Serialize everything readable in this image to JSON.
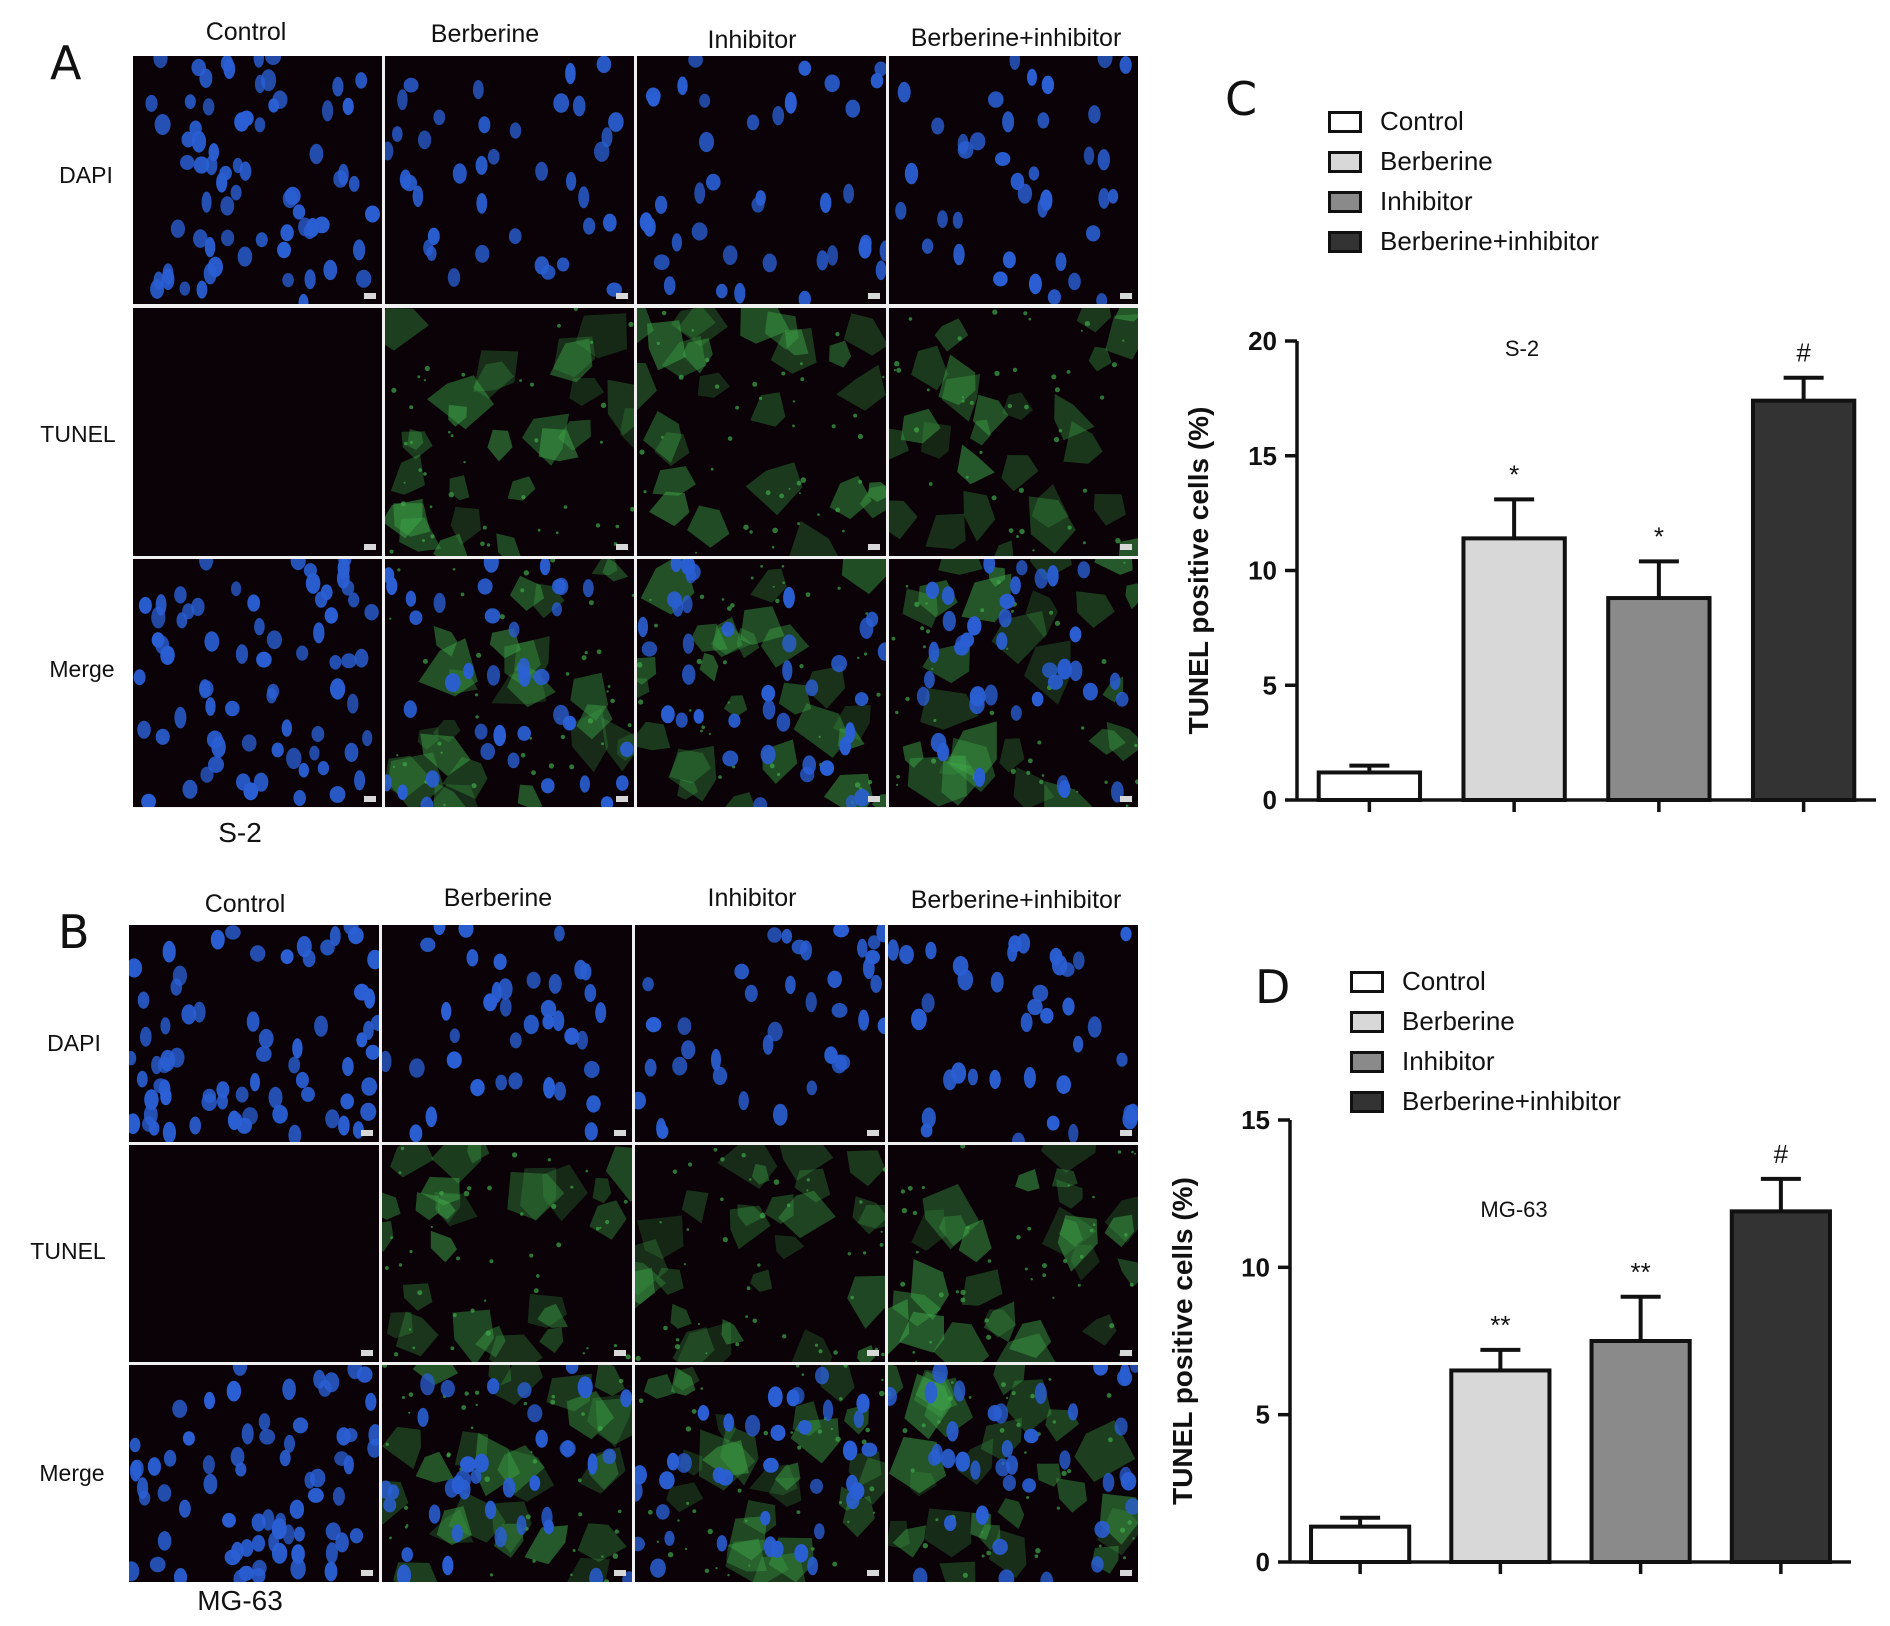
{
  "panels": {
    "a": {
      "letter": "A",
      "cell_line": "S-2",
      "columns": [
        "Control",
        "Berberine",
        "Inhibitor",
        "Berberine+inhibitor"
      ],
      "rows": [
        "DAPI",
        "TUNEL",
        "Merge"
      ]
    },
    "b": {
      "letter": "B",
      "cell_line": "MG-63",
      "columns": [
        "Control",
        "Berberine",
        "Inhibitor",
        "Berberine+inhibitor"
      ],
      "rows": [
        "DAPI",
        "TUNEL",
        "Merge"
      ]
    },
    "c": {
      "letter": "C"
    },
    "d": {
      "letter": "D"
    }
  },
  "colors": {
    "control": "#ffffff",
    "berberine": "#d8d8d8",
    "inhibitor": "#8a8a8a",
    "berberine_inhibitor": "#333333",
    "dapi_blue": "#2a5fd4",
    "tunel_green": "#3fa84a",
    "micrograph_bg": "#0a0207"
  },
  "chart_data": [
    {
      "type": "bar",
      "title": "S-2",
      "categories": [
        "Control",
        "Berberine",
        "Inhibitor",
        "Berberine+inhibitor"
      ],
      "legend": [
        "Control",
        "Berberine",
        "Inhibitor",
        "Berberine+inhibitor"
      ],
      "legend_position": "top",
      "ylabel": "TUNEL positive cells (%)",
      "ylim": [
        0,
        20
      ],
      "yticks": [
        0,
        5,
        10,
        15,
        20
      ],
      "values": [
        1.2,
        11.4,
        8.8,
        17.4
      ],
      "errors": [
        0.3,
        1.7,
        1.6,
        1.0
      ],
      "annotations": [
        "",
        "*",
        "*",
        "#"
      ]
    },
    {
      "type": "bar",
      "title": "MG-63",
      "categories": [
        "Control",
        "Berberine",
        "Inhibitor",
        "Berberine+inhibitor"
      ],
      "legend": [
        "Control",
        "Berberine",
        "Inhibitor",
        "Berberine+inhibitor"
      ],
      "legend_position": "top",
      "ylabel": "TUNEL positive cells (%)",
      "ylim": [
        0,
        15
      ],
      "yticks": [
        0,
        5,
        10,
        15
      ],
      "values": [
        1.2,
        6.5,
        7.5,
        11.9
      ],
      "errors": [
        0.3,
        0.7,
        1.5,
        1.1
      ],
      "annotations": [
        "",
        "**",
        "**",
        "#"
      ]
    }
  ]
}
